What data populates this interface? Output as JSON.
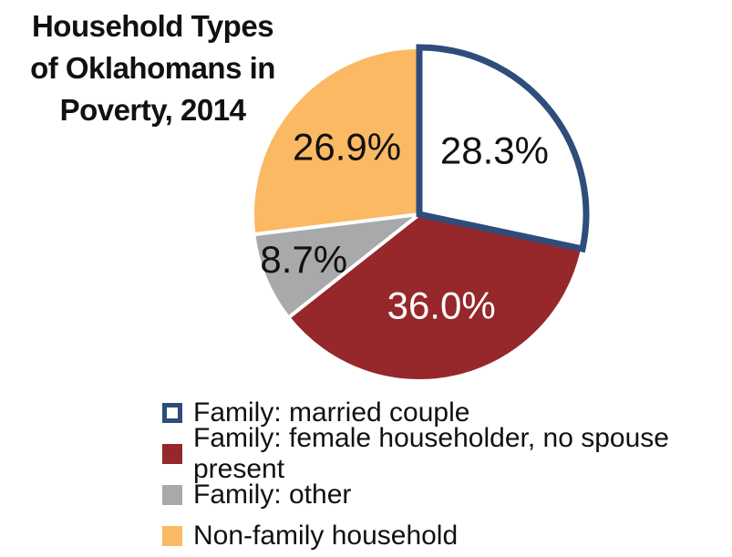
{
  "chart_data": {
    "type": "pie",
    "title_lines": [
      "Household Types",
      "of Oklahomans in",
      "Poverty, 2014"
    ],
    "slices": [
      {
        "name": "Family: married couple",
        "value": 28.3,
        "label": "28.3%",
        "fill": "#ffffff",
        "stroke": "#2e4d7b",
        "label_color": "#111111"
      },
      {
        "name": "Family: female householder, no spouse present",
        "value": 36.0,
        "label": "36.0%",
        "fill": "#96272b",
        "stroke": "#ffffff",
        "label_color": "#ffffff"
      },
      {
        "name": "Family: other",
        "value": 8.7,
        "label": "8.7%",
        "fill": "#a8a9ab",
        "stroke": "#ffffff",
        "label_color": "#111111"
      },
      {
        "name": "Non-family household",
        "value": 26.9,
        "label": "26.9%",
        "fill": "#fbb963",
        "stroke": "#ffffff",
        "label_color": "#111111"
      }
    ],
    "legend_placement": "bottom"
  }
}
